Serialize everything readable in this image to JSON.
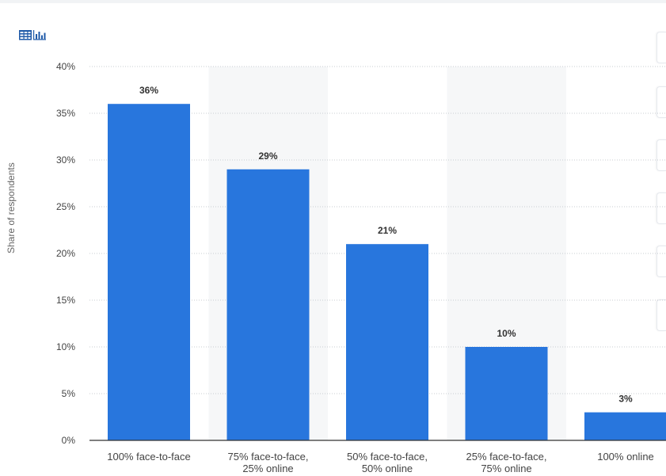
{
  "chart_data": {
    "type": "bar",
    "categories": [
      "100% face-to-face",
      "75% face-to-face,\n25% online",
      "50% face-to-face,\n50% online",
      "25% face-to-face,\n75% online",
      "100% online"
    ],
    "values": [
      36,
      29,
      21,
      10,
      3
    ],
    "value_labels": [
      "36%",
      "29%",
      "21%",
      "10%",
      "3%"
    ],
    "title": "",
    "xlabel": "",
    "ylabel": "Share of respondents",
    "ylim": [
      0,
      40
    ],
    "yticks": [
      0,
      5,
      10,
      15,
      20,
      25,
      30,
      35,
      40
    ],
    "ytick_labels": [
      "0%",
      "5%",
      "10%",
      "15%",
      "20%",
      "25%",
      "30%",
      "35%",
      "40%"
    ],
    "grid": true,
    "alternating_band_categories": [
      1,
      3
    ],
    "colors": {
      "bar": "#2876dd",
      "band": "#f6f7f8",
      "grid": "#c8ccd2",
      "axis": "#333333",
      "tick_label": "#444444",
      "value_label": "#333333"
    }
  },
  "toolbar": {
    "icon": "table-chart-toggle-icon"
  }
}
